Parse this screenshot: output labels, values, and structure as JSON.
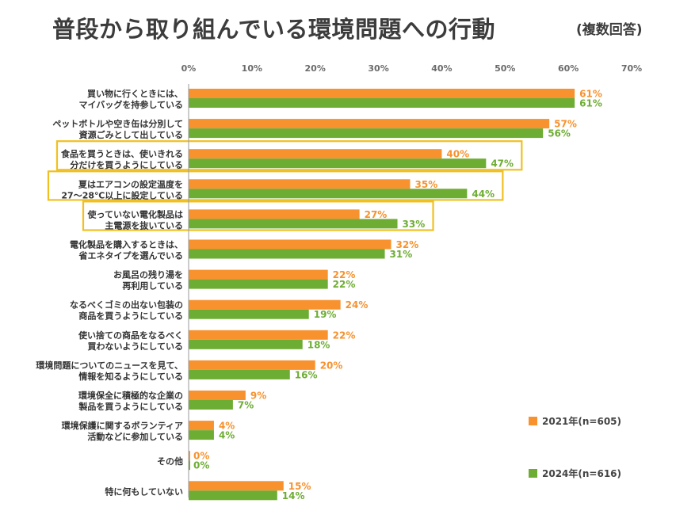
{
  "title": "普段から取り組んでいる環境問題への行動",
  "subtitle": "(複数回答)",
  "colors": {
    "s2021": "#F7922E",
    "s2024": "#6EAD33",
    "highlight": "#F0C020",
    "axis": "#9a9a9a"
  },
  "chart_data": {
    "type": "bar",
    "orientation": "horizontal",
    "xlim": [
      0,
      70
    ],
    "ticks": [
      "0%",
      "10%",
      "20%",
      "30%",
      "40%",
      "50%",
      "60%",
      "70%"
    ],
    "tick_values": [
      0,
      10,
      20,
      30,
      40,
      50,
      60,
      70
    ],
    "grid": false,
    "legend_position": "bottom-right",
    "value_suffix": "%",
    "categories": [
      [
        "買い物に行くときには、",
        "マイバッグを持参している"
      ],
      [
        "ペットボトルや空き缶は分別して",
        "資源ごみとして出している"
      ],
      [
        "食品を買うときは、使いきれる",
        "分だけを買うようにしている"
      ],
      [
        "夏はエアコンの設定温度を",
        "27～28℃以上に設定している"
      ],
      [
        "使っていない電化製品は",
        "主電源を抜いている"
      ],
      [
        "電化製品を購入するときは、",
        "省エネタイプを選んでいる"
      ],
      [
        "お風呂の残り湯を",
        "再利用している"
      ],
      [
        "なるべくゴミの出ない包装の",
        "商品を買うようにしている"
      ],
      [
        "使い捨ての商品をなるべく",
        "買わないようにしている"
      ],
      [
        "環境問題についてのニュースを見て、",
        "情報を知るようにしている"
      ],
      [
        "環境保全に積極的な企業の",
        "製品を買うようにしている"
      ],
      [
        "環境保護に関するボランティア",
        "活動などに参加している"
      ],
      [
        "その他"
      ],
      [
        "特に何もしていない"
      ]
    ],
    "highlighted_categories": [
      2,
      3,
      4
    ],
    "series": [
      {
        "name": "2021年(n=605)",
        "color": "#F7922E",
        "values": [
          61,
          57,
          40,
          35,
          27,
          32,
          22,
          24,
          22,
          20,
          9,
          4,
          0,
          15
        ]
      },
      {
        "name": "2024年(n=616)",
        "color": "#6EAD33",
        "values": [
          61,
          56,
          47,
          44,
          33,
          31,
          22,
          19,
          18,
          16,
          7,
          4,
          0,
          14
        ]
      }
    ]
  }
}
